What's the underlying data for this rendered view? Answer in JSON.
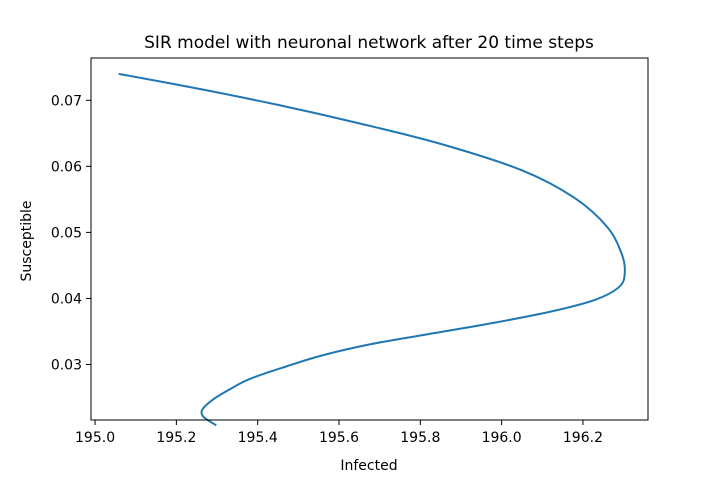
{
  "chart_data": {
    "type": "line",
    "title": "SIR model with neuronal network after 20 time steps",
    "xlabel": "Infected",
    "ylabel": "Susceptible",
    "xlim": [
      194.99,
      196.36
    ],
    "ylim": [
      0.0216,
      0.0764
    ],
    "xticks": [
      195.0,
      195.2,
      195.4,
      195.6,
      195.8,
      196.0,
      196.2
    ],
    "xtick_labels": [
      "195.0",
      "195.2",
      "195.4",
      "195.6",
      "195.8",
      "196.0",
      "196.2"
    ],
    "yticks": [
      0.03,
      0.04,
      0.05,
      0.06,
      0.07
    ],
    "ytick_labels": [
      "0.03",
      "0.04",
      "0.05",
      "0.06",
      "0.07"
    ],
    "grid": false,
    "series": [
      {
        "color": "#1f77b4",
        "points": [
          [
            195.058,
            0.074
          ],
          [
            195.25,
            0.0718
          ],
          [
            195.45,
            0.0693
          ],
          [
            195.65,
            0.0665
          ],
          [
            195.85,
            0.0634
          ],
          [
            196.05,
            0.0594
          ],
          [
            196.18,
            0.0552
          ],
          [
            196.26,
            0.0508
          ],
          [
            196.295,
            0.0468
          ],
          [
            196.303,
            0.044
          ],
          [
            196.29,
            0.0418
          ],
          [
            196.23,
            0.0398
          ],
          [
            196.12,
            0.038
          ],
          [
            195.98,
            0.0363
          ],
          [
            195.82,
            0.0346
          ],
          [
            195.68,
            0.0331
          ],
          [
            195.56,
            0.0314
          ],
          [
            195.47,
            0.0297
          ],
          [
            195.38,
            0.0278
          ],
          [
            195.33,
            0.0262
          ],
          [
            195.29,
            0.0247
          ],
          [
            195.264,
            0.0232
          ],
          [
            195.265,
            0.0222
          ],
          [
            195.282,
            0.0214
          ],
          [
            195.298,
            0.0208
          ]
        ]
      }
    ]
  }
}
